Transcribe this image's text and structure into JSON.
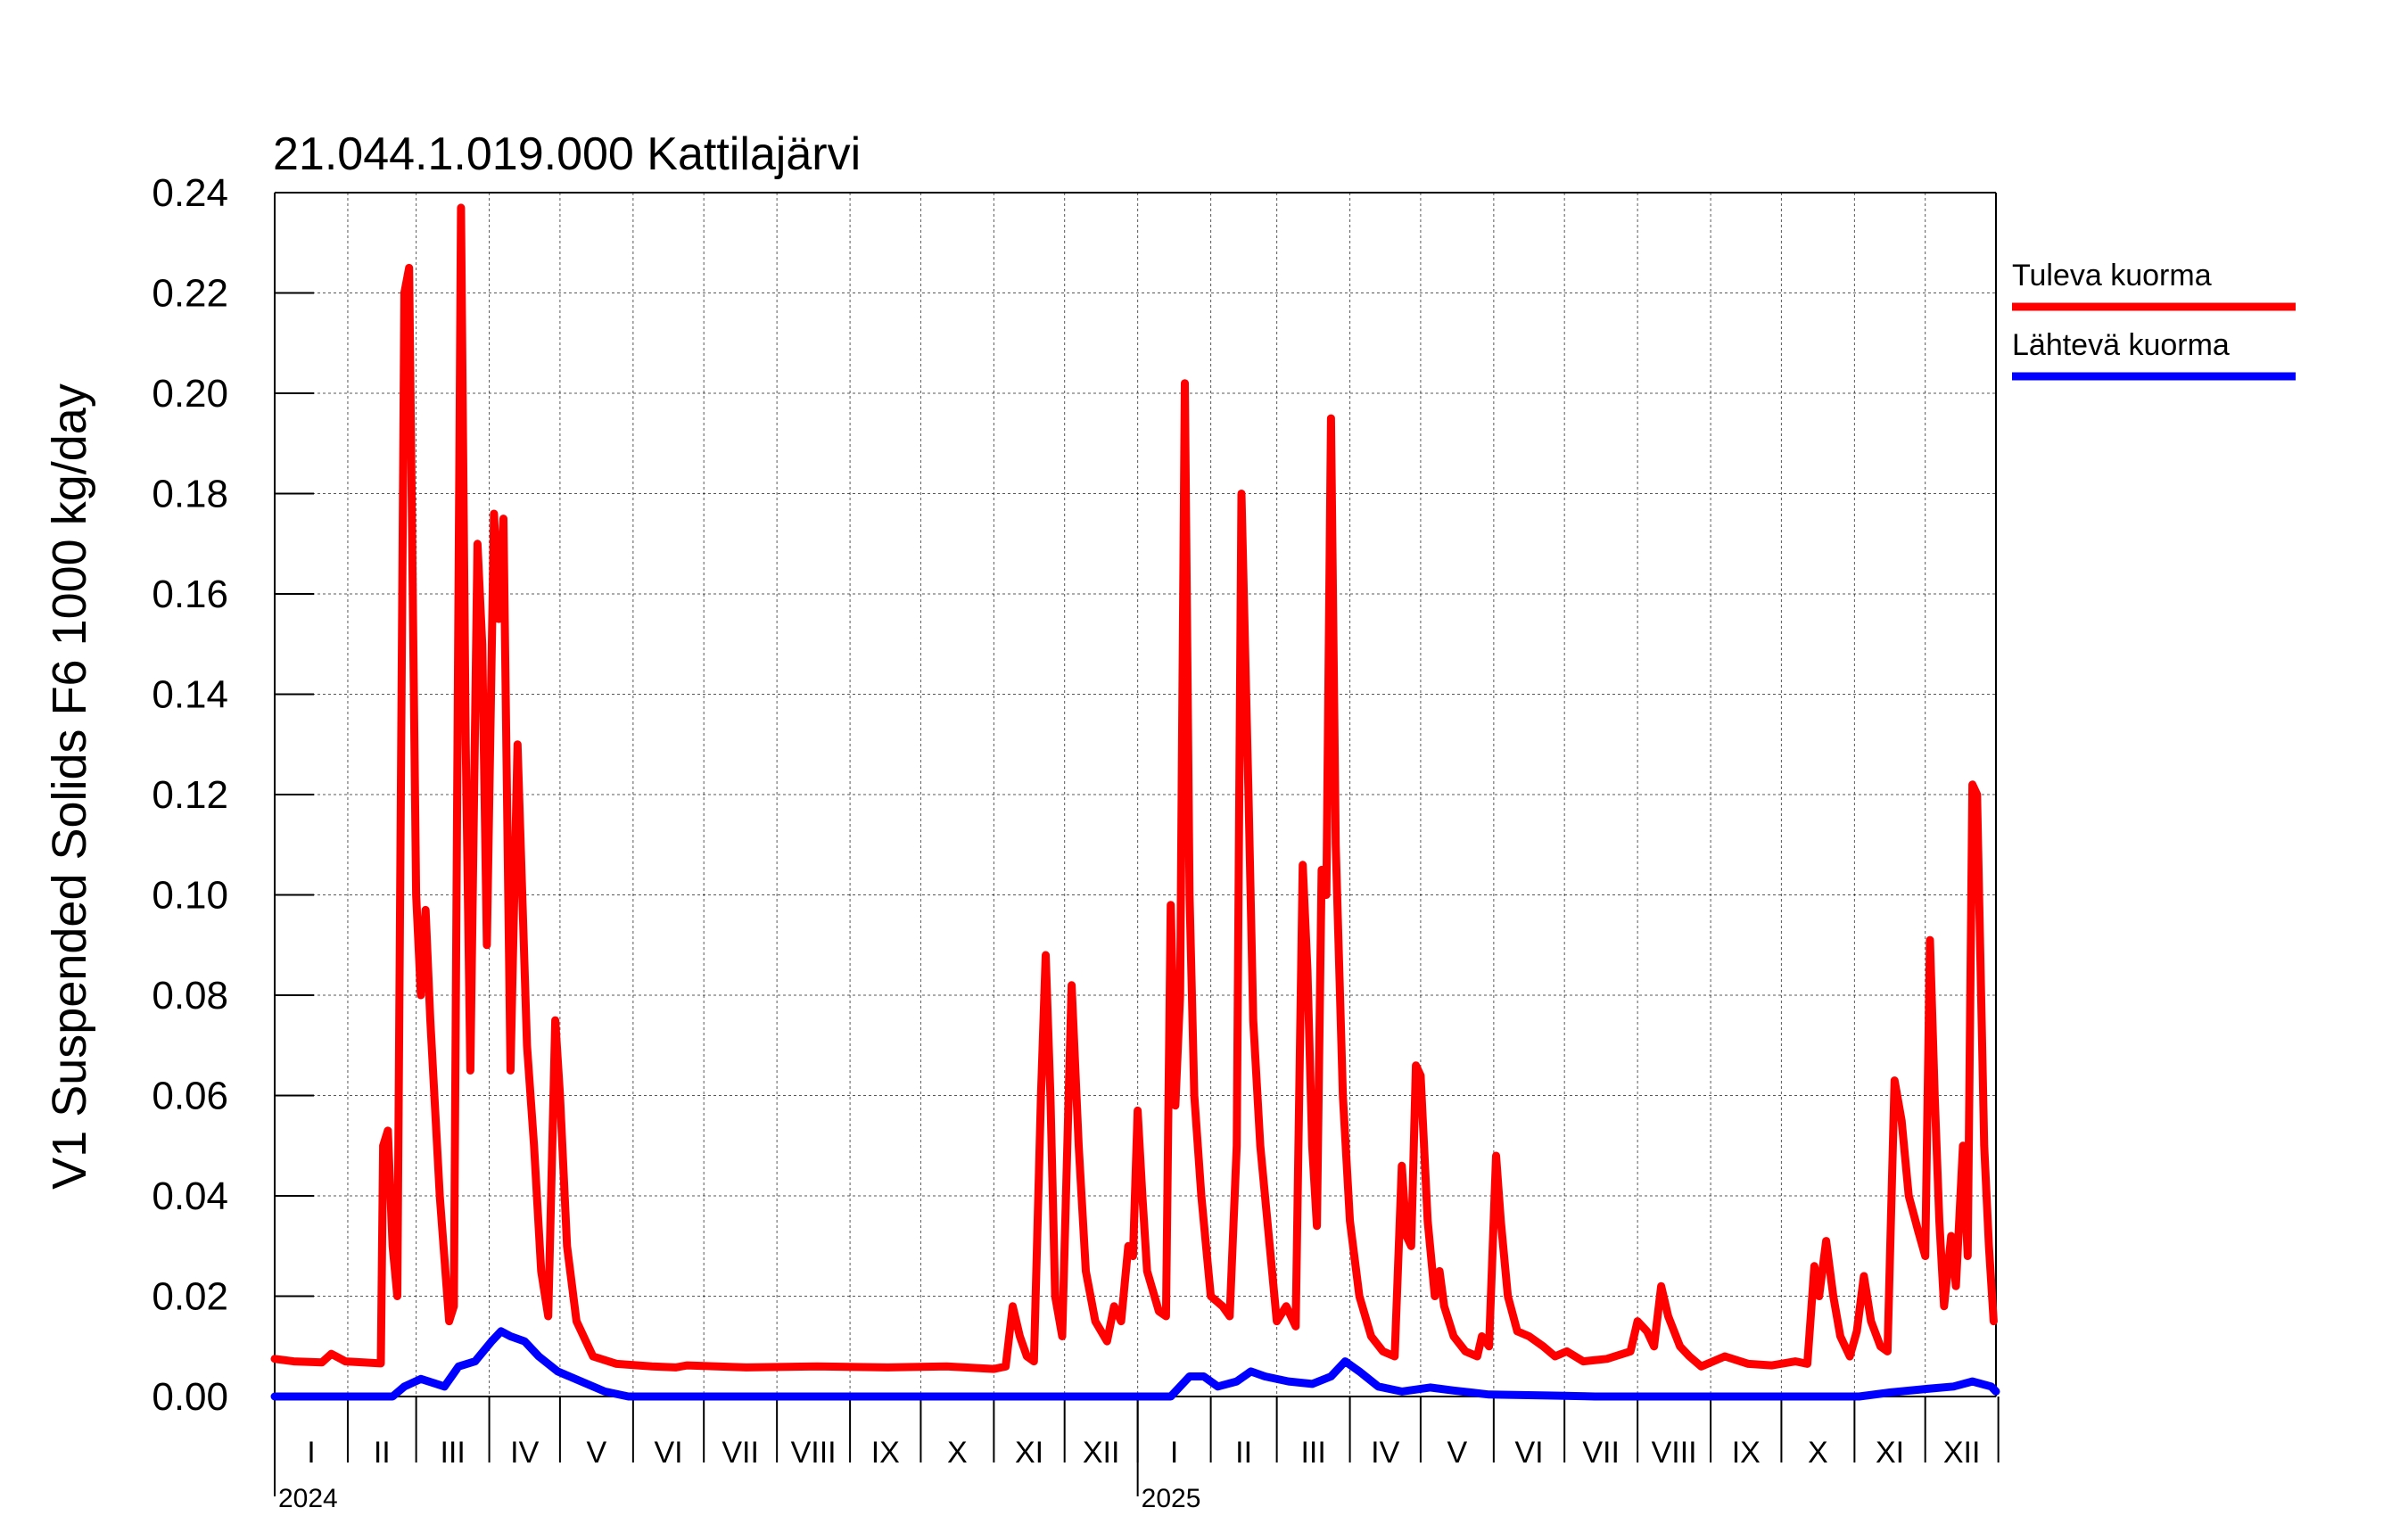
{
  "chart_data": {
    "type": "line",
    "title": "21.044.1.019.000 Kattilajärvi",
    "ylabel": "V1 Suspended Solids F6 1000 kg/day",
    "ylim": [
      0,
      0.24
    ],
    "y_ticks": [
      "0.00",
      "0.02",
      "0.04",
      "0.06",
      "0.08",
      "0.10",
      "0.12",
      "0.14",
      "0.16",
      "0.18",
      "0.20",
      "0.22",
      "0.24"
    ],
    "x_range_days": [
      0,
      730
    ],
    "month_labels": [
      "I",
      "II",
      "III",
      "IV",
      "V",
      "VI",
      "VII",
      "VIII",
      "IX",
      "X",
      "XI",
      "XII",
      "I",
      "II",
      "III",
      "IV",
      "V",
      "VI",
      "VII",
      "VIII",
      "IX",
      "X",
      "XI",
      "XII"
    ],
    "year_labels": [
      "2024",
      "2025"
    ],
    "grid": true,
    "legend_position": "right",
    "series": [
      {
        "name": "Tuleva kuorma",
        "color": "#ff0000",
        "points": [
          [
            0,
            0.0075
          ],
          [
            8,
            0.007
          ],
          [
            20,
            0.0068
          ],
          [
            24,
            0.0085
          ],
          [
            30,
            0.007
          ],
          [
            45,
            0.0066
          ],
          [
            46,
            0.05
          ],
          [
            48,
            0.053
          ],
          [
            50,
            0.03
          ],
          [
            52,
            0.02
          ],
          [
            55,
            0.22
          ],
          [
            57,
            0.225
          ],
          [
            60,
            0.1
          ],
          [
            62,
            0.08
          ],
          [
            64,
            0.097
          ],
          [
            66,
            0.075
          ],
          [
            70,
            0.04
          ],
          [
            74,
            0.015
          ],
          [
            76,
            0.018
          ],
          [
            79,
            0.237
          ],
          [
            81,
            0.13
          ],
          [
            83,
            0.065
          ],
          [
            86,
            0.17
          ],
          [
            88,
            0.15
          ],
          [
            90,
            0.09
          ],
          [
            93,
            0.176
          ],
          [
            95,
            0.155
          ],
          [
            97,
            0.175
          ],
          [
            100,
            0.065
          ],
          [
            103,
            0.13
          ],
          [
            105,
            0.1
          ],
          [
            107,
            0.07
          ],
          [
            110,
            0.05
          ],
          [
            113,
            0.025
          ],
          [
            116,
            0.016
          ],
          [
            119,
            0.075
          ],
          [
            121,
            0.06
          ],
          [
            124,
            0.03
          ],
          [
            128,
            0.015
          ],
          [
            135,
            0.008
          ],
          [
            145,
            0.0065
          ],
          [
            160,
            0.006
          ],
          [
            170,
            0.0058
          ],
          [
            175,
            0.0062
          ],
          [
            200,
            0.0058
          ],
          [
            230,
            0.006
          ],
          [
            260,
            0.0058
          ],
          [
            285,
            0.006
          ],
          [
            305,
            0.0055
          ],
          [
            310,
            0.006
          ],
          [
            313,
            0.018
          ],
          [
            316,
            0.012
          ],
          [
            319,
            0.008
          ],
          [
            322,
            0.007
          ],
          [
            325,
            0.06
          ],
          [
            327,
            0.088
          ],
          [
            329,
            0.06
          ],
          [
            331,
            0.02
          ],
          [
            334,
            0.012
          ],
          [
            338,
            0.082
          ],
          [
            341,
            0.05
          ],
          [
            344,
            0.025
          ],
          [
            348,
            0.015
          ],
          [
            353,
            0.011
          ],
          [
            356,
            0.018
          ],
          [
            359,
            0.015
          ],
          [
            362,
            0.03
          ],
          [
            364,
            0.028
          ],
          [
            366,
            0.057
          ],
          [
            368,
            0.04
          ],
          [
            370,
            0.025
          ],
          [
            375,
            0.017
          ],
          [
            378,
            0.016
          ],
          [
            380,
            0.098
          ],
          [
            382,
            0.058
          ],
          [
            384,
            0.08
          ],
          [
            386,
            0.202
          ],
          [
            388,
            0.1
          ],
          [
            390,
            0.06
          ],
          [
            393,
            0.04
          ],
          [
            397,
            0.02
          ],
          [
            402,
            0.018
          ],
          [
            405,
            0.016
          ],
          [
            408,
            0.05
          ],
          [
            410,
            0.18
          ],
          [
            413,
            0.12
          ],
          [
            415,
            0.075
          ],
          [
            418,
            0.05
          ],
          [
            422,
            0.03
          ],
          [
            425,
            0.015
          ],
          [
            429,
            0.018
          ],
          [
            433,
            0.014
          ],
          [
            436,
            0.106
          ],
          [
            438,
            0.085
          ],
          [
            440,
            0.05
          ],
          [
            442,
            0.034
          ],
          [
            444,
            0.105
          ],
          [
            446,
            0.1
          ],
          [
            448,
            0.195
          ],
          [
            450,
            0.11
          ],
          [
            453,
            0.06
          ],
          [
            456,
            0.035
          ],
          [
            460,
            0.02
          ],
          [
            465,
            0.012
          ],
          [
            470,
            0.009
          ],
          [
            475,
            0.008
          ],
          [
            478,
            0.046
          ],
          [
            480,
            0.032
          ],
          [
            482,
            0.03
          ],
          [
            484,
            0.066
          ],
          [
            486,
            0.064
          ],
          [
            489,
            0.035
          ],
          [
            492,
            0.02
          ],
          [
            494,
            0.025
          ],
          [
            496,
            0.018
          ],
          [
            500,
            0.012
          ],
          [
            505,
            0.009
          ],
          [
            510,
            0.008
          ],
          [
            512,
            0.012
          ],
          [
            515,
            0.01
          ],
          [
            518,
            0.048
          ],
          [
            520,
            0.035
          ],
          [
            523,
            0.02
          ],
          [
            527,
            0.013
          ],
          [
            532,
            0.012
          ],
          [
            538,
            0.01
          ],
          [
            543,
            0.008
          ],
          [
            548,
            0.009
          ],
          [
            555,
            0.007
          ],
          [
            565,
            0.0075
          ],
          [
            575,
            0.009
          ],
          [
            578,
            0.015
          ],
          [
            582,
            0.013
          ],
          [
            585,
            0.01
          ],
          [
            588,
            0.022
          ],
          [
            591,
            0.016
          ],
          [
            596,
            0.01
          ],
          [
            600,
            0.008
          ],
          [
            605,
            0.006
          ],
          [
            615,
            0.008
          ],
          [
            625,
            0.0065
          ],
          [
            635,
            0.0062
          ],
          [
            645,
            0.007
          ],
          [
            650,
            0.0065
          ],
          [
            653,
            0.026
          ],
          [
            655,
            0.02
          ],
          [
            658,
            0.031
          ],
          [
            661,
            0.02
          ],
          [
            664,
            0.012
          ],
          [
            668,
            0.008
          ],
          [
            671,
            0.013
          ],
          [
            674,
            0.024
          ],
          [
            677,
            0.015
          ],
          [
            681,
            0.01
          ],
          [
            684,
            0.009
          ],
          [
            687,
            0.063
          ],
          [
            690,
            0.055
          ],
          [
            693,
            0.04
          ],
          [
            697,
            0.033
          ],
          [
            700,
            0.028
          ],
          [
            702,
            0.091
          ],
          [
            704,
            0.06
          ],
          [
            706,
            0.035
          ],
          [
            708,
            0.018
          ],
          [
            711,
            0.032
          ],
          [
            713,
            0.022
          ],
          [
            716,
            0.05
          ],
          [
            718,
            0.028
          ],
          [
            720,
            0.122
          ],
          [
            722,
            0.12
          ],
          [
            725,
            0.05
          ],
          [
            727,
            0.03
          ],
          [
            729,
            0.015
          ]
        ]
      },
      {
        "name": "Lähtevä kuorma",
        "color": "#0000ff",
        "points": [
          [
            0,
            0
          ],
          [
            50,
            0
          ],
          [
            55,
            0.002
          ],
          [
            62,
            0.0035
          ],
          [
            72,
            0.002
          ],
          [
            78,
            0.006
          ],
          [
            85,
            0.007
          ],
          [
            92,
            0.011
          ],
          [
            96,
            0.013
          ],
          [
            100,
            0.012
          ],
          [
            106,
            0.011
          ],
          [
            112,
            0.008
          ],
          [
            120,
            0.005
          ],
          [
            130,
            0.003
          ],
          [
            140,
            0.001
          ],
          [
            150,
            0
          ],
          [
            380,
            0
          ],
          [
            384,
            0.002
          ],
          [
            388,
            0.004
          ],
          [
            394,
            0.004
          ],
          [
            400,
            0.002
          ],
          [
            408,
            0.003
          ],
          [
            414,
            0.005
          ],
          [
            420,
            0.004
          ],
          [
            430,
            0.003
          ],
          [
            440,
            0.0025
          ],
          [
            448,
            0.004
          ],
          [
            454,
            0.007
          ],
          [
            460,
            0.005
          ],
          [
            468,
            0.002
          ],
          [
            478,
            0.001
          ],
          [
            490,
            0.0018
          ],
          [
            500,
            0.0012
          ],
          [
            515,
            0.0004
          ],
          [
            540,
            0.0002
          ],
          [
            560,
            0
          ],
          [
            650,
            0
          ],
          [
            672,
            0
          ],
          [
            685,
            0.0008
          ],
          [
            700,
            0.0015
          ],
          [
            712,
            0.002
          ],
          [
            720,
            0.003
          ],
          [
            728,
            0.002
          ],
          [
            730,
            0.001
          ]
        ]
      }
    ]
  }
}
